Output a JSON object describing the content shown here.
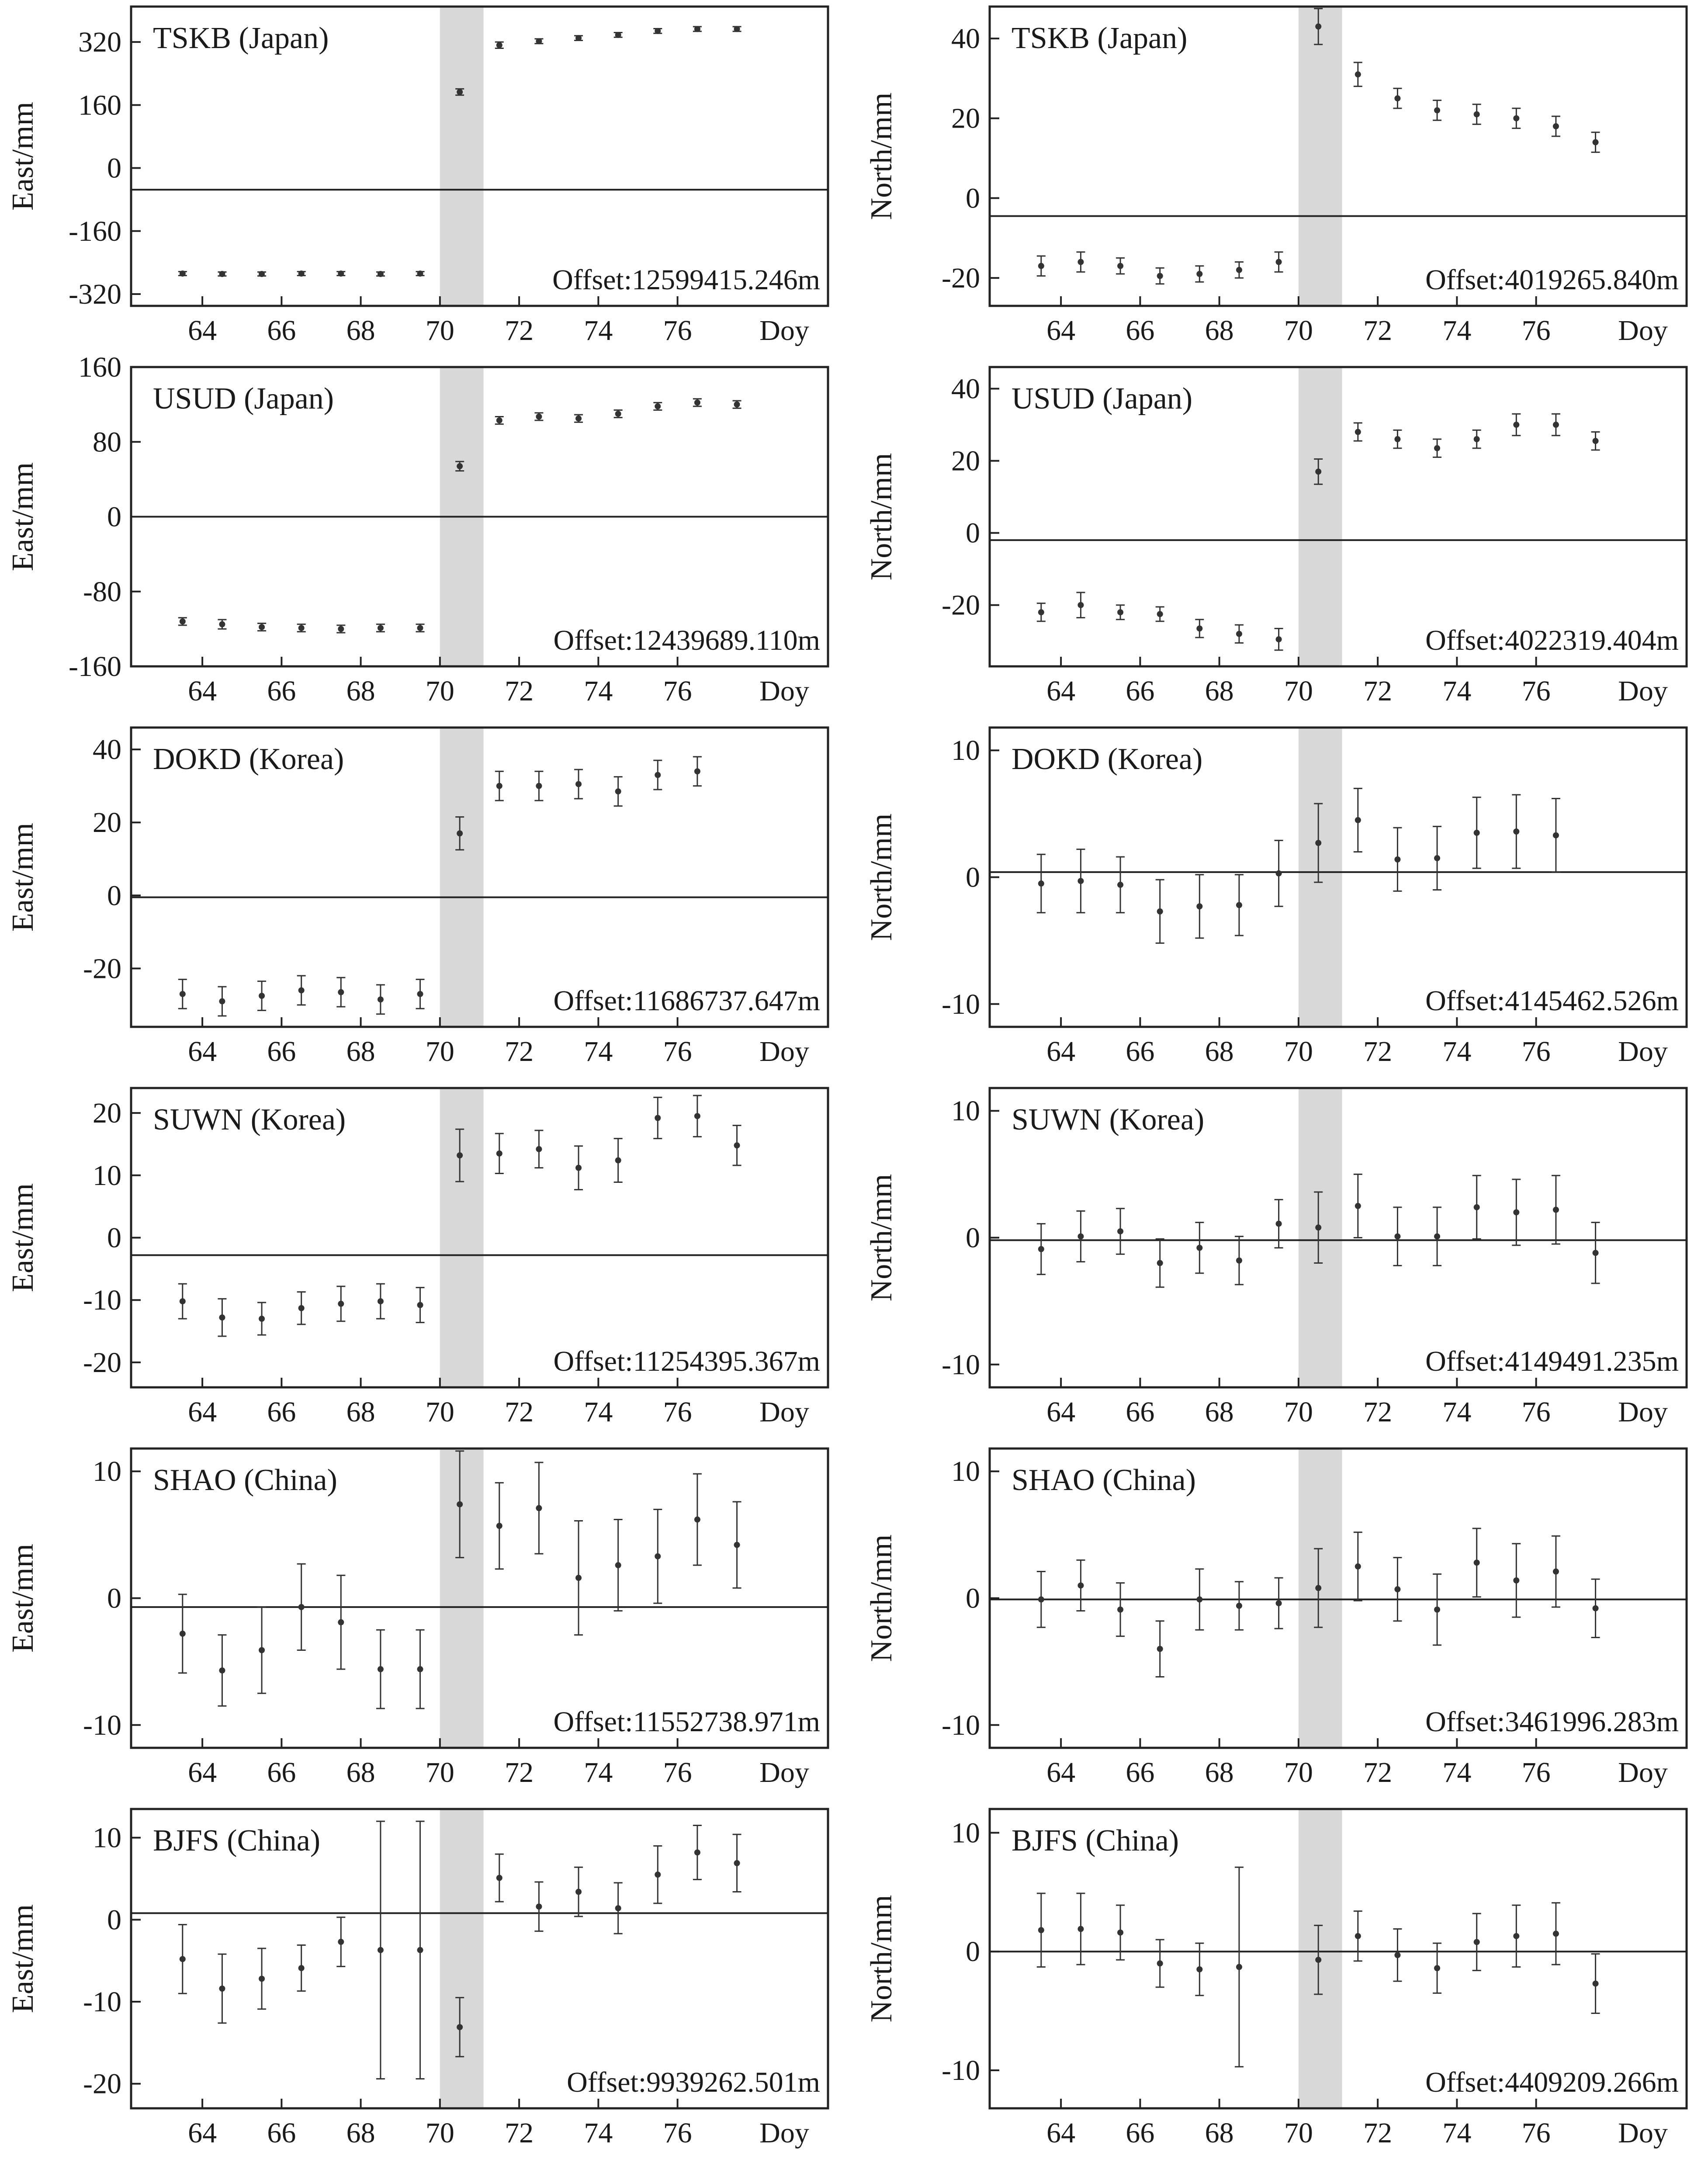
{
  "colors": {
    "frame": "#222222",
    "marker": "#333333",
    "earthquake_band": "#d8d8d8",
    "background": "#ffffff"
  },
  "chart_data": [
    {
      "type": "scatter",
      "station": "TSKB (Japan)",
      "ylabel": "East/mm",
      "offset": "Offset:12599415.246m",
      "xlim": [
        62.2,
        79.8
      ],
      "ylim": [
        -350,
        410
      ],
      "yticks": [
        320,
        160,
        0,
        -160,
        -320
      ],
      "yticklabels": [
        "320",
        "160",
        "0",
        "-160",
        "-320"
      ],
      "xticks": [
        64,
        66,
        68,
        70,
        72,
        74,
        76
      ],
      "xticklabels": [
        "64",
        "66",
        "68",
        "70",
        "72",
        "74",
        "76"
      ],
      "xend_label": "Doy",
      "band": [
        70,
        71.1
      ],
      "reference_line": -55,
      "x": [
        63.5,
        64.5,
        65.5,
        66.5,
        67.5,
        68.5,
        69.5,
        70.5,
        71.5,
        72.5,
        73.5,
        74.5,
        75.5,
        76.5,
        77.5
      ],
      "y": [
        -268,
        -269,
        -269,
        -268,
        -268,
        -269,
        -268,
        193,
        312,
        322,
        330,
        338,
        348,
        353,
        353
      ],
      "err": [
        5,
        5,
        5,
        5,
        5,
        5,
        5,
        8,
        8,
        6,
        6,
        6,
        6,
        6,
        6
      ]
    },
    {
      "type": "scatter",
      "station": "TSKB (Japan)",
      "ylabel": "North/mm",
      "offset": "Offset:4019265.840m",
      "xlim": [
        62.2,
        79.8
      ],
      "ylim": [
        -27,
        48
      ],
      "yticks": [
        40,
        20,
        0,
        -20
      ],
      "yticklabels": [
        "40",
        "20",
        "0",
        "-20"
      ],
      "xticks": [
        64,
        66,
        68,
        70,
        72,
        74,
        76
      ],
      "xticklabels": [
        "64",
        "66",
        "68",
        "70",
        "72",
        "74",
        "76"
      ],
      "xend_label": "Doy",
      "band": [
        70,
        71.1
      ],
      "reference_line": -4.5,
      "x": [
        63.5,
        64.5,
        65.5,
        66.5,
        67.5,
        68.5,
        69.5,
        70.5,
        71.5,
        72.5,
        73.5,
        74.5,
        75.5,
        76.5,
        77.5
      ],
      "y": [
        -17,
        -16,
        -17,
        -19.5,
        -19,
        -18,
        -16,
        43,
        31,
        25,
        22,
        21,
        20,
        18,
        14
      ],
      "err": [
        2.5,
        2.5,
        2,
        2,
        2,
        2,
        2.5,
        4.5,
        3,
        2.5,
        2.5,
        2.5,
        2.5,
        2.5,
        2.5
      ]
    },
    {
      "type": "scatter",
      "station": "USUD (Japan)",
      "ylabel": "East/mm",
      "offset": "Offset:12439689.110m",
      "xlim": [
        62.2,
        79.8
      ],
      "ylim": [
        -160,
        160
      ],
      "yticks": [
        160,
        80,
        0,
        -80,
        -160
      ],
      "yticklabels": [
        "160",
        "80",
        "0",
        "-80",
        "-160"
      ],
      "xticks": [
        64,
        66,
        68,
        70,
        72,
        74,
        76
      ],
      "xticklabels": [
        "64",
        "66",
        "68",
        "70",
        "72",
        "74",
        "76"
      ],
      "xend_label": "Doy",
      "band": [
        70,
        71.1
      ],
      "reference_line": 0,
      "x": [
        63.5,
        64.5,
        65.5,
        66.5,
        67.5,
        68.5,
        69.5,
        70.5,
        71.5,
        72.5,
        73.5,
        74.5,
        75.5,
        76.5,
        77.5
      ],
      "y": [
        -112,
        -115,
        -118,
        -119,
        -120,
        -119,
        -119,
        54,
        103,
        107,
        105,
        110,
        118,
        122,
        120
      ],
      "err": [
        4,
        5,
        4,
        4,
        4,
        4,
        4,
        5,
        4,
        4,
        4,
        4,
        4,
        4,
        4
      ]
    },
    {
      "type": "scatter",
      "station": "USUD (Japan)",
      "ylabel": "North/mm",
      "offset": "Offset:4022319.404m",
      "xlim": [
        62.2,
        79.8
      ],
      "ylim": [
        -37,
        46
      ],
      "yticks": [
        40,
        20,
        0,
        -20
      ],
      "yticklabels": [
        "40",
        "20",
        "0",
        "-20"
      ],
      "xticks": [
        64,
        66,
        68,
        70,
        72,
        74,
        76
      ],
      "xticklabels": [
        "64",
        "66",
        "68",
        "70",
        "72",
        "74",
        "76"
      ],
      "xend_label": "Doy",
      "band": [
        70,
        71.1
      ],
      "reference_line": -2,
      "x": [
        63.5,
        64.5,
        65.5,
        66.5,
        67.5,
        68.5,
        69.5,
        70.5,
        71.5,
        72.5,
        73.5,
        74.5,
        75.5,
        76.5,
        77.5
      ],
      "y": [
        -22,
        -20,
        -22,
        -22.5,
        -26.5,
        -28,
        -29.5,
        17,
        28,
        26,
        23.5,
        26,
        30,
        30,
        25.5
      ],
      "err": [
        2.5,
        3.5,
        2,
        2,
        2.5,
        2.5,
        3,
        3.5,
        2.5,
        2.5,
        2.5,
        2.5,
        3,
        3,
        2.5
      ]
    },
    {
      "type": "scatter",
      "station": "DOKD (Korea)",
      "ylabel": "East/mm",
      "offset": "Offset:11686737.647m",
      "xlim": [
        62.2,
        79.8
      ],
      "ylim": [
        -36,
        46
      ],
      "yticks": [
        40,
        20,
        0,
        -20
      ],
      "yticklabels": [
        "40",
        "20",
        "0",
        "-20"
      ],
      "xticks": [
        64,
        66,
        68,
        70,
        72,
        74,
        76
      ],
      "xticklabels": [
        "64",
        "66",
        "68",
        "70",
        "72",
        "74",
        "76"
      ],
      "xend_label": "Doy",
      "band": [
        70,
        71.1
      ],
      "reference_line": -0.5,
      "x": [
        63.5,
        64.5,
        65.5,
        66.5,
        67.5,
        68.5,
        69.5,
        70.5,
        71.5,
        72.5,
        73.5,
        74.5,
        75.5,
        76.5
      ],
      "y": [
        -27,
        -29,
        -27.5,
        -26,
        -26.5,
        -28.5,
        -27,
        17,
        30,
        30,
        30.5,
        28.5,
        33,
        34
      ],
      "err": [
        4,
        4,
        4,
        4,
        4,
        4,
        4,
        4.5,
        4,
        4,
        4,
        4,
        4,
        4
      ]
    },
    {
      "type": "scatter",
      "station": "DOKD (Korea)",
      "ylabel": "North/mm",
      "offset": "Offset:4145462.526m",
      "xlim": [
        62.2,
        79.8
      ],
      "ylim": [
        -11.8,
        11.8
      ],
      "yticks": [
        10,
        0,
        -10
      ],
      "yticklabels": [
        "10",
        "0",
        "-10"
      ],
      "xticks": [
        64,
        66,
        68,
        70,
        72,
        74,
        76
      ],
      "xticklabels": [
        "64",
        "66",
        "68",
        "70",
        "72",
        "74",
        "76"
      ],
      "xend_label": "Doy",
      "band": [
        70,
        71.1
      ],
      "reference_line": 0.4,
      "x": [
        63.5,
        64.5,
        65.5,
        66.5,
        67.5,
        68.5,
        69.5,
        70.5,
        71.5,
        72.5,
        73.5,
        74.5,
        75.5,
        76.5
      ],
      "y": [
        -0.5,
        -0.3,
        -0.6,
        -2.7,
        -2.3,
        -2.2,
        0.3,
        2.7,
        4.5,
        1.4,
        1.5,
        3.5,
        3.6,
        3.3
      ],
      "err": [
        2.3,
        2.5,
        2.2,
        2.5,
        2.5,
        2.4,
        2.6,
        3.1,
        2.5,
        2.5,
        2.5,
        2.8,
        2.9,
        2.9
      ]
    },
    {
      "type": "scatter",
      "station": "SUWN (Korea)",
      "ylabel": "East/mm",
      "offset": "Offset:11254395.367m",
      "xlim": [
        62.2,
        79.8
      ],
      "ylim": [
        -24,
        24
      ],
      "yticks": [
        20,
        10,
        0,
        -10,
        -20
      ],
      "yticklabels": [
        "20",
        "10",
        "0",
        "-10",
        "-20"
      ],
      "xticks": [
        64,
        66,
        68,
        70,
        72,
        74,
        76
      ],
      "xticklabels": [
        "64",
        "66",
        "68",
        "70",
        "72",
        "74",
        "76"
      ],
      "xend_label": "Doy",
      "band": [
        70,
        71.1
      ],
      "reference_line": -2.8,
      "x": [
        63.5,
        64.5,
        65.5,
        66.5,
        67.5,
        68.5,
        69.5,
        70.5,
        71.5,
        72.5,
        73.5,
        74.5,
        75.5,
        76.5,
        77.5
      ],
      "y": [
        -10.2,
        -12.8,
        -13,
        -11.3,
        -10.6,
        -10.2,
        -10.8,
        13.2,
        13.5,
        14.2,
        11.2,
        12.4,
        19.2,
        19.5,
        14.8
      ],
      "err": [
        2.8,
        3,
        2.6,
        2.6,
        2.8,
        2.8,
        2.8,
        4.2,
        3.2,
        3,
        3.5,
        3.5,
        3.3,
        3.3,
        3.2
      ]
    },
    {
      "type": "scatter",
      "station": "SUWN (Korea)",
      "ylabel": "North/mm",
      "offset": "Offset:4149491.235m",
      "xlim": [
        62.2,
        79.8
      ],
      "ylim": [
        -11.8,
        11.8
      ],
      "yticks": [
        10,
        0,
        -10
      ],
      "yticklabels": [
        "10",
        "0",
        "-10"
      ],
      "xticks": [
        64,
        66,
        68,
        70,
        72,
        74,
        76
      ],
      "xticklabels": [
        "64",
        "66",
        "68",
        "70",
        "72",
        "74",
        "76"
      ],
      "xend_label": "Doy",
      "band": [
        70,
        71.1
      ],
      "reference_line": -0.2,
      "x": [
        63.5,
        64.5,
        65.5,
        66.5,
        67.5,
        68.5,
        69.5,
        70.5,
        71.5,
        72.5,
        73.5,
        74.5,
        75.5,
        76.5,
        77.5
      ],
      "y": [
        -0.9,
        0.1,
        0.5,
        -2,
        -0.8,
        -1.8,
        1.1,
        0.8,
        2.5,
        0.1,
        0.1,
        2.4,
        2,
        2.2,
        -1.2
      ],
      "err": [
        2,
        2,
        1.8,
        1.9,
        2,
        1.9,
        1.9,
        2.8,
        2.5,
        2.3,
        2.3,
        2.5,
        2.6,
        2.7,
        2.4
      ]
    },
    {
      "type": "scatter",
      "station": "SHAO (China)",
      "ylabel": "East/mm",
      "offset": "Offset:11552738.971m",
      "xlim": [
        62.2,
        79.8
      ],
      "ylim": [
        -11.8,
        11.8
      ],
      "yticks": [
        10,
        0,
        -10
      ],
      "yticklabels": [
        "10",
        "0",
        "-10"
      ],
      "xticks": [
        64,
        66,
        68,
        70,
        72,
        74,
        76
      ],
      "xticklabels": [
        "64",
        "66",
        "68",
        "70",
        "72",
        "74",
        "76"
      ],
      "xend_label": "Doy",
      "band": [
        70,
        71.1
      ],
      "reference_line": -0.7,
      "x": [
        63.5,
        64.5,
        65.5,
        66.5,
        67.5,
        68.5,
        69.5,
        70.5,
        71.5,
        72.5,
        73.5,
        74.5,
        75.5,
        76.5,
        77.5
      ],
      "y": [
        -2.8,
        -5.7,
        -4.1,
        -0.7,
        -1.9,
        -5.6,
        -5.6,
        7.4,
        5.7,
        7.1,
        1.6,
        2.6,
        3.3,
        6.2,
        4.2
      ],
      "err": [
        3.1,
        2.8,
        3.4,
        3.4,
        3.7,
        3.1,
        3.1,
        4.2,
        3.4,
        3.6,
        4.5,
        3.6,
        3.7,
        3.6,
        3.4
      ]
    },
    {
      "type": "scatter",
      "station": "SHAO (China)",
      "ylabel": "North/mm",
      "offset": "Offset:3461996.283m",
      "xlim": [
        62.2,
        79.8
      ],
      "ylim": [
        -11.8,
        11.8
      ],
      "yticks": [
        10,
        0,
        -10
      ],
      "yticklabels": [
        "10",
        "0",
        "-10"
      ],
      "xticks": [
        64,
        66,
        68,
        70,
        72,
        74,
        76
      ],
      "xticklabels": [
        "64",
        "66",
        "68",
        "70",
        "72",
        "74",
        "76"
      ],
      "xend_label": "Doy",
      "band": [
        70,
        71.1
      ],
      "reference_line": -0.1,
      "x": [
        63.5,
        64.5,
        65.5,
        66.5,
        67.5,
        68.5,
        69.5,
        70.5,
        71.5,
        72.5,
        73.5,
        74.5,
        75.5,
        76.5,
        77.5
      ],
      "y": [
        -0.1,
        1,
        -0.9,
        -4,
        -0.1,
        -0.6,
        -0.4,
        0.8,
        2.5,
        0.7,
        -0.9,
        2.8,
        1.4,
        2.1,
        -0.8
      ],
      "err": [
        2.2,
        2,
        2.1,
        2.2,
        2.4,
        1.9,
        2,
        3.1,
        2.7,
        2.5,
        2.8,
        2.7,
        2.9,
        2.8,
        2.3
      ]
    },
    {
      "type": "scatter",
      "station": "BJFS (China)",
      "ylabel": "East/mm",
      "offset": "Offset:9939262.501m",
      "xlim": [
        62.2,
        79.8
      ],
      "ylim": [
        -23,
        13.5
      ],
      "yticks": [
        10,
        0,
        -10,
        -20
      ],
      "yticklabels": [
        "10",
        "0",
        "-10",
        "-20"
      ],
      "xticks": [
        64,
        66,
        68,
        70,
        72,
        74,
        76
      ],
      "xticklabels": [
        "64",
        "66",
        "68",
        "70",
        "72",
        "74",
        "76"
      ],
      "xend_label": "Doy",
      "band": [
        70,
        71.1
      ],
      "reference_line": 0.8,
      "x": [
        63.5,
        64.5,
        65.5,
        66.5,
        67.5,
        68.5,
        69.5,
        70.5,
        71.5,
        72.5,
        73.5,
        74.5,
        75.5,
        76.5,
        77.5
      ],
      "y": [
        -4.8,
        -8.4,
        -7.2,
        -5.9,
        -2.7,
        -3.7,
        -3.7,
        -13.1,
        5.1,
        1.6,
        3.4,
        1.4,
        5.5,
        8.2,
        6.9
      ],
      "err": [
        4.2,
        4.2,
        3.7,
        2.8,
        3,
        15.7,
        15.7,
        3.6,
        2.9,
        3,
        3,
        3.1,
        3.5,
        3.3,
        3.5
      ]
    },
    {
      "type": "scatter",
      "station": "BJFS (China)",
      "ylabel": "North/mm",
      "offset": "Offset:4409209.266m",
      "xlim": [
        62.2,
        79.8
      ],
      "ylim": [
        -13.2,
        12
      ],
      "yticks": [
        10,
        0,
        -10
      ],
      "yticklabels": [
        "10",
        "0",
        "-10"
      ],
      "xticks": [
        64,
        66,
        68,
        70,
        72,
        74,
        76
      ],
      "xticklabels": [
        "64",
        "66",
        "68",
        "70",
        "72",
        "74",
        "76"
      ],
      "xend_label": "Doy",
      "band": [
        70,
        71.1
      ],
      "reference_line": 0,
      "x": [
        63.5,
        64.5,
        65.5,
        66.5,
        67.5,
        68.5,
        70.5,
        71.5,
        72.5,
        73.5,
        74.5,
        75.5,
        76.5,
        77.5
      ],
      "y": [
        1.8,
        1.9,
        1.6,
        -1,
        -1.5,
        -1.3,
        -0.7,
        1.3,
        -0.3,
        -1.4,
        0.8,
        1.3,
        1.5,
        -2.7
      ],
      "err": [
        3.1,
        3,
        2.3,
        2,
        2.2,
        8.4,
        2.9,
        2.1,
        2.2,
        2.1,
        2.4,
        2.6,
        2.6,
        2.5
      ]
    }
  ]
}
